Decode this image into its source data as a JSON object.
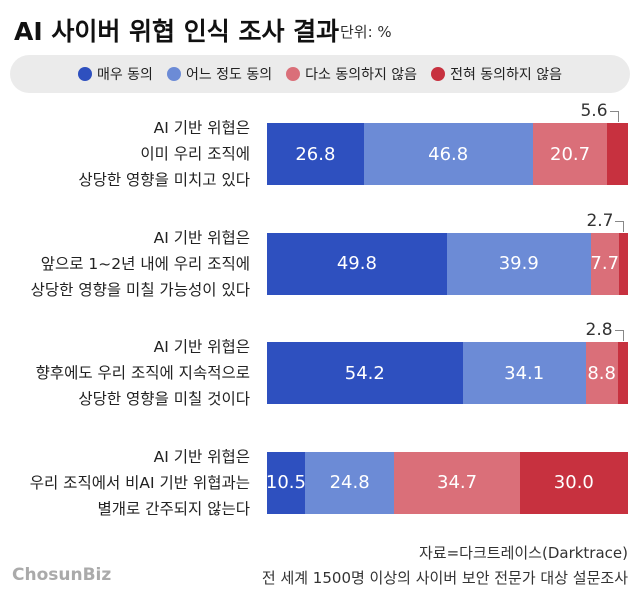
{
  "chart_data": {
    "type": "stacked-bar-horizontal",
    "title": "AI 사이버 위협 인식 조사 결과",
    "subtitle": "단위: %",
    "categories": [
      "AI 기반 위협은\n이미 우리 조직에\n상당한 영향을 미치고 있다",
      "AI 기반 위협은\n앞으로 1~2년 내에 우리 조직에\n상당한 영향을 미칠 가능성이 있다",
      "AI 기반 위협은\n향후에도 우리 조직에 지속적으로\n상당한 영향을 미칠 것이다",
      "AI 기반 위협은\n우리 조직에서 비AI 기반 위협과는\n별개로 간주되지 않는다"
    ],
    "series": [
      {
        "name": "매우 동의",
        "color": "#2e50bf",
        "values": [
          26.8,
          49.8,
          54.2,
          10.5
        ]
      },
      {
        "name": "어느 정도 동의",
        "color": "#6c8bd6",
        "values": [
          46.8,
          39.9,
          34.1,
          24.8
        ]
      },
      {
        "name": "다소 동의하지 않음",
        "color": "#da6f79",
        "values": [
          20.7,
          7.7,
          8.8,
          34.7
        ]
      },
      {
        "name": "전혀 동의하지 않음",
        "color": "#c7313f",
        "values": [
          5.6,
          2.7,
          2.8,
          30
        ],
        "value_labels": [
          "5.6",
          "2.7",
          "2.8",
          "30.0"
        ]
      }
    ],
    "source": "자료=다크트레이스(Darktrace)",
    "note": "전 세계 1500명 이상의 사이버 보안 전문가 대상 설문조사",
    "logo": "ChosunBiz"
  }
}
